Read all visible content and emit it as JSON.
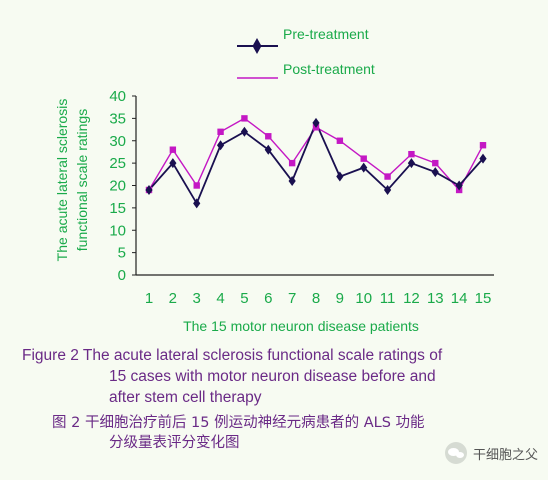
{
  "chart_data": {
    "type": "line",
    "ylabel_lines": [
      "The acute lateral sclerosis",
      "functional scale ratings"
    ],
    "xlabel": "The 15 motor neuron disease patients",
    "categories": [
      "1",
      "2",
      "3",
      "4",
      "5",
      "6",
      "7",
      "8",
      "9",
      "10",
      "11",
      "12",
      "13",
      "14",
      "15"
    ],
    "yticks": [
      "0",
      "5",
      "10",
      "15",
      "20",
      "25",
      "30",
      "35",
      "40"
    ],
    "ylim": [
      0,
      40
    ],
    "grid": false,
    "legend_position": "top-right",
    "series": [
      {
        "name": "Pre-treatment",
        "color": "#1a1050",
        "marker": "diamond",
        "values": [
          19,
          25,
          16,
          29,
          32,
          28,
          21,
          34,
          22,
          24,
          19,
          25,
          23,
          20,
          26
        ]
      },
      {
        "name": "Post-treatment",
        "color": "#c418c4",
        "marker": "square",
        "values": [
          19,
          28,
          20,
          32,
          35,
          31,
          25,
          33,
          30,
          26,
          22,
          27,
          25,
          19,
          29
        ]
      }
    ]
  },
  "caption": {
    "en_line1": "Figure 2 The acute lateral sclerosis functional scale ratings of",
    "en_line2": "15 cases with motor neuron disease before and",
    "en_line3": "after stem cell therapy",
    "zh_line1": "图  2 干细胞治疗前后  15 例运动神经元病患者的  ALS 功能",
    "zh_line2": "分级量表评分变化图"
  },
  "watermark": {
    "text": "干细胞之父",
    "icon": "wechat-icon"
  },
  "colors": {
    "axis_text": "#1aaa4a",
    "caption": "#6a2a86",
    "background": "#f7fbf2"
  }
}
